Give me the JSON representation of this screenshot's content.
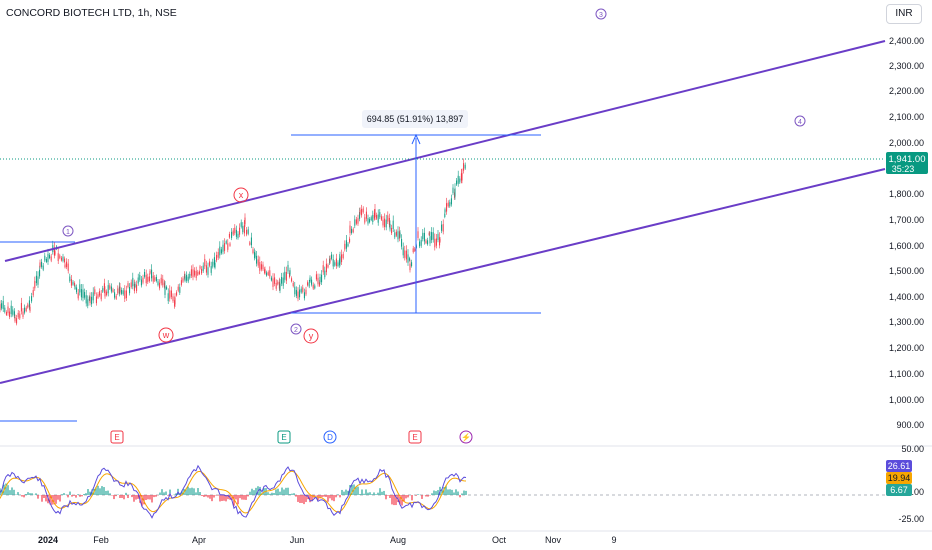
{
  "header": {
    "title": "CONCORD BIOTECH LTD, 1h, NSE",
    "currency": "INR"
  },
  "price_axis": {
    "ticks": [
      "2,400.00",
      "2,300.00",
      "2,200.00",
      "2,100.00",
      "2,000.00",
      "1,900.00",
      "1,800.00",
      "1,700.00",
      "1,600.00",
      "1,500.00",
      "1,400.00",
      "1,300.00",
      "1,200.00",
      "1,100.00",
      "1,000.00",
      "900.00"
    ],
    "last_price": "1,941.00",
    "countdown": "35:23",
    "colors": {
      "badge": "#089981"
    }
  },
  "time_axis": {
    "labels": [
      "2024",
      "Feb",
      "Apr",
      "Jun",
      "Aug",
      "Oct",
      "Nov",
      "9"
    ]
  },
  "measure": {
    "label": "694.85 (51.91%) 13,897"
  },
  "waves": [
    {
      "label": "1",
      "color": "#7e57c2"
    },
    {
      "label": "2",
      "color": "#7e57c2"
    },
    {
      "label": "3",
      "color": "#7e57c2"
    },
    {
      "label": "4",
      "color": "#7e57c2"
    },
    {
      "label": "w",
      "color": "#f23645"
    },
    {
      "label": "x",
      "color": "#f23645"
    },
    {
      "label": "y",
      "color": "#f23645"
    }
  ],
  "events": [
    {
      "label": "E",
      "type": "earnings",
      "color": "#f23645"
    },
    {
      "label": "E",
      "type": "earnings",
      "color": "#089981"
    },
    {
      "label": "D",
      "type": "dividend",
      "color": "#2962ff"
    },
    {
      "label": "E",
      "type": "earnings",
      "color": "#f23645"
    },
    {
      "label": "⚡",
      "type": "flash",
      "color": "#9c27b0"
    }
  ],
  "indicator": {
    "axis_ticks": [
      "50.00",
      "0.00",
      "-25.00"
    ],
    "values": [
      {
        "value": "26.61",
        "color": "#5b4cdb"
      },
      {
        "value": "19.94",
        "color": "#f7a600"
      },
      {
        "value": "6.67",
        "color": "#26a69a"
      }
    ]
  },
  "colors": {
    "channel": "#6a3dc7",
    "measure": "#2962ff",
    "up": "#089981",
    "down": "#f23645"
  }
}
